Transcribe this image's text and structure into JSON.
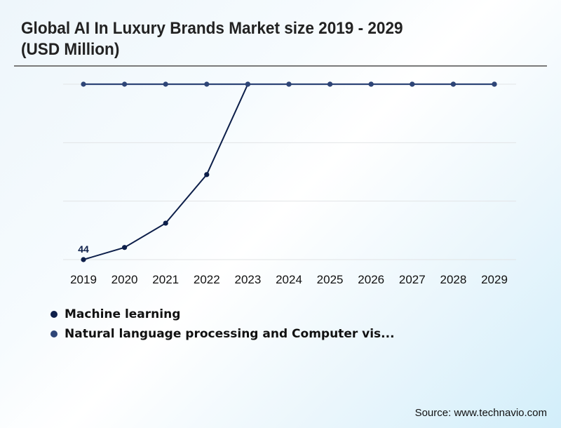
{
  "header": {
    "title": "Global AI In Luxury Brands Market size 2019 - 2029 (USD Million)"
  },
  "chart_data": {
    "type": "line",
    "title": "Global AI In Luxury Brands Market size 2019 - 2029 (USD Million)",
    "xlabel": "",
    "ylabel": "",
    "categories": [
      "2019",
      "2020",
      "2021",
      "2022",
      "2023",
      "2024",
      "2025",
      "2026",
      "2027",
      "2028",
      "2029"
    ],
    "ylim": [
      44,
      174
    ],
    "grid": true,
    "gridlines": 4,
    "y_tick_labels_visible": false,
    "note": "Values above the top gridline are clipped to the top of the plot area",
    "series": [
      {
        "name": "Machine learning",
        "color": "#0d1f4a",
        "values": [
          44,
          53,
          71,
          107,
          174,
          174,
          174,
          174,
          174,
          174,
          174
        ]
      },
      {
        "name": "Natural language processing and Computer vis...",
        "color": "#2e4577",
        "values": [
          174,
          174,
          174,
          174,
          174,
          174,
          174,
          174,
          174,
          174,
          174
        ]
      }
    ],
    "data_labels": [
      {
        "series": 0,
        "index": 0,
        "text": "44"
      }
    ],
    "legend": {
      "position": "bottom-left",
      "entries": [
        "Machine learning",
        "Natural language processing and Computer vis..."
      ]
    }
  },
  "footer": {
    "source": "Source: www.technavio.com"
  }
}
